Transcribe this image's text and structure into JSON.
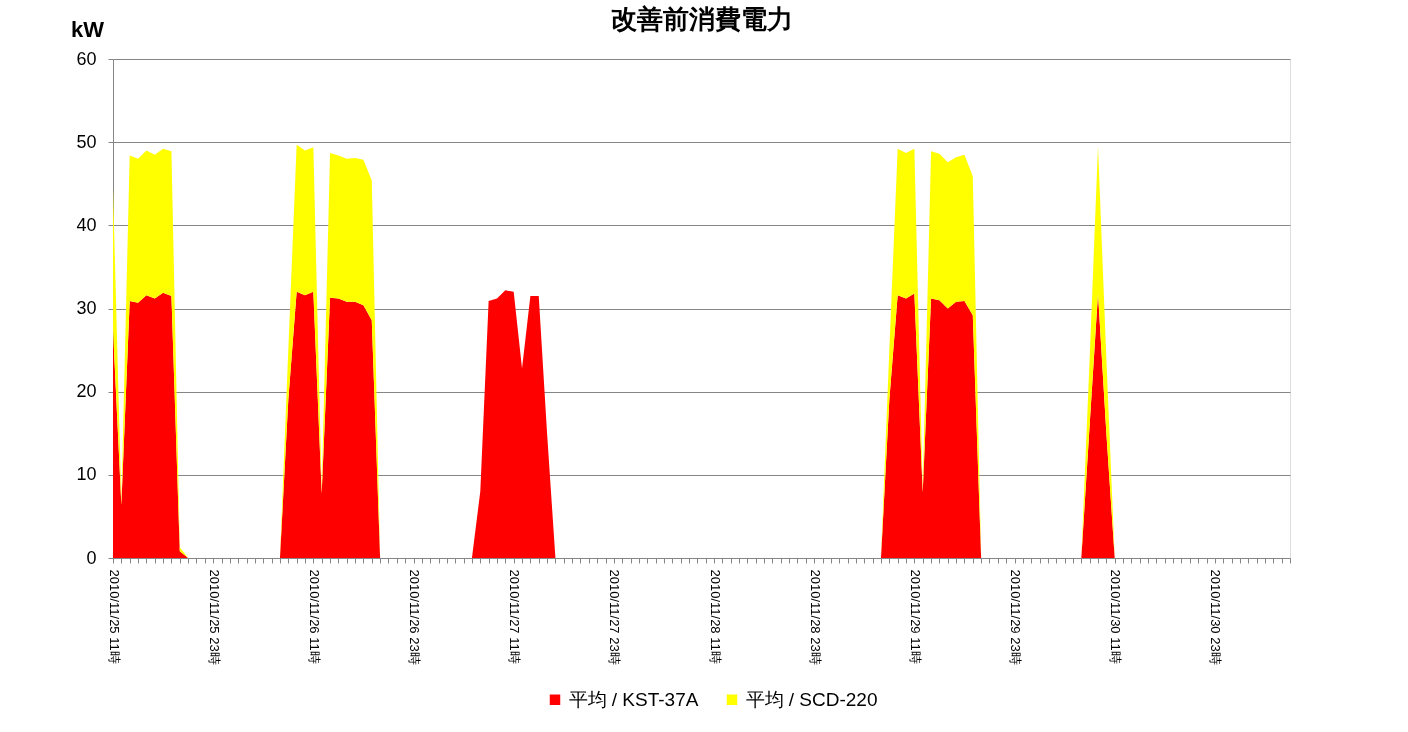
{
  "chart_data": {
    "type": "area",
    "title": "改善前消費電力",
    "ylabel": "kW",
    "categories": [
      "2010/11/25 11時",
      null,
      null,
      null,
      null,
      null,
      null,
      null,
      null,
      null,
      null,
      null,
      "2010/11/25 23時",
      null,
      null,
      null,
      null,
      null,
      null,
      null,
      null,
      null,
      null,
      null,
      "2010/11/26 11時",
      null,
      null,
      null,
      null,
      null,
      null,
      null,
      null,
      null,
      null,
      null,
      "2010/11/26 23時",
      null,
      null,
      null,
      null,
      null,
      null,
      null,
      null,
      null,
      null,
      null,
      "2010/11/27 11時",
      null,
      null,
      null,
      null,
      null,
      null,
      null,
      null,
      null,
      null,
      null,
      "2010/11/27 23時",
      null,
      null,
      null,
      null,
      null,
      null,
      null,
      null,
      null,
      null,
      null,
      "2010/11/28 11時",
      null,
      null,
      null,
      null,
      null,
      null,
      null,
      null,
      null,
      null,
      null,
      "2010/11/28 23時",
      null,
      null,
      null,
      null,
      null,
      null,
      null,
      null,
      null,
      null,
      null,
      "2010/11/29 11時",
      null,
      null,
      null,
      null,
      null,
      null,
      null,
      null,
      null,
      null,
      null,
      "2010/11/29 23時",
      null,
      null,
      null,
      null,
      null,
      null,
      null,
      null,
      null,
      null,
      null,
      "2010/11/30 11時",
      null,
      null,
      null,
      null,
      null,
      null,
      null,
      null,
      null,
      null,
      null,
      "2010/11/30 23時",
      null,
      null,
      null,
      null,
      null,
      null,
      null,
      null,
      null
    ],
    "series": [
      {
        "name": "平均 / KST-37A",
        "color": "#ff0000",
        "values": [
          27.4,
          6.4,
          30.9,
          30.7,
          31.6,
          31.2,
          31.9,
          31.5,
          0.8,
          0,
          0,
          0,
          0,
          0,
          0,
          0,
          0,
          0,
          0,
          0,
          0,
          19,
          32.0,
          31.6,
          32.0,
          7.8,
          31.3,
          31.2,
          30.8,
          30.8,
          30.4,
          28.6,
          0,
          0,
          0,
          0,
          0,
          0,
          0,
          0,
          0,
          0,
          0,
          0,
          8.0,
          30.9,
          31.2,
          32.2,
          32.0,
          22.8,
          31.5,
          31.5,
          15,
          0,
          0,
          0,
          0,
          0,
          0,
          0,
          0,
          0,
          0,
          0,
          0,
          0,
          0,
          0,
          0,
          0,
          0,
          0,
          0,
          0,
          0,
          0,
          0,
          0,
          0,
          0,
          0,
          0,
          0,
          0,
          0,
          0,
          0,
          0,
          0,
          0,
          0,
          0,
          0,
          19,
          31.6,
          31.2,
          31.8,
          7.9,
          31.2,
          31.0,
          30.0,
          30.8,
          30.9,
          29.2,
          0,
          0,
          0,
          0,
          0,
          0,
          0,
          0,
          0,
          0,
          0,
          0,
          0,
          16,
          31.8,
          15,
          0,
          0,
          0,
          0,
          0,
          0,
          0,
          0,
          0,
          0,
          0,
          0,
          0,
          0,
          0,
          0,
          0,
          0,
          0,
          0,
          0,
          0
        ]
      },
      {
        "name": "平均 / SCD-220",
        "color": "#ffff00",
        "values": [
          17.1,
          0.4,
          17.5,
          17.3,
          17.4,
          17.3,
          17.3,
          17.4,
          0.5,
          0,
          0,
          0,
          0,
          0,
          0,
          0,
          0,
          0,
          0,
          0,
          0,
          6,
          17.7,
          17.4,
          17.4,
          0.3,
          17.4,
          17.2,
          17.2,
          17.3,
          17.5,
          16.8,
          0,
          0,
          0,
          0,
          0,
          0,
          0,
          0,
          0,
          0,
          0,
          0,
          0,
          0,
          0,
          0,
          0,
          0,
          0,
          0,
          0,
          0,
          0,
          0,
          0,
          0,
          0,
          0,
          0,
          0,
          0,
          0,
          0,
          0,
          0,
          0,
          0,
          0,
          0,
          0,
          0,
          0,
          0,
          0,
          0,
          0,
          0,
          0,
          0,
          0,
          0,
          0,
          0,
          0,
          0,
          0,
          0,
          0,
          0,
          0,
          0,
          6,
          17.6,
          17.5,
          17.4,
          0.3,
          17.7,
          17.6,
          17.6,
          17.4,
          17.6,
          16.7,
          0,
          0,
          0,
          0,
          0,
          0,
          0,
          0,
          0,
          0,
          0,
          0,
          0,
          8,
          17.7,
          9,
          0,
          0,
          0,
          0,
          0,
          0,
          0,
          0,
          0,
          0,
          0,
          0,
          0,
          0,
          0,
          0,
          0,
          0,
          0,
          0,
          0,
          0
        ]
      }
    ],
    "stacked": true,
    "ylim": [
      0,
      60
    ],
    "yticks": [
      0,
      10,
      20,
      30,
      40,
      50,
      60
    ],
    "grid": "y",
    "legend": "bottom"
  }
}
